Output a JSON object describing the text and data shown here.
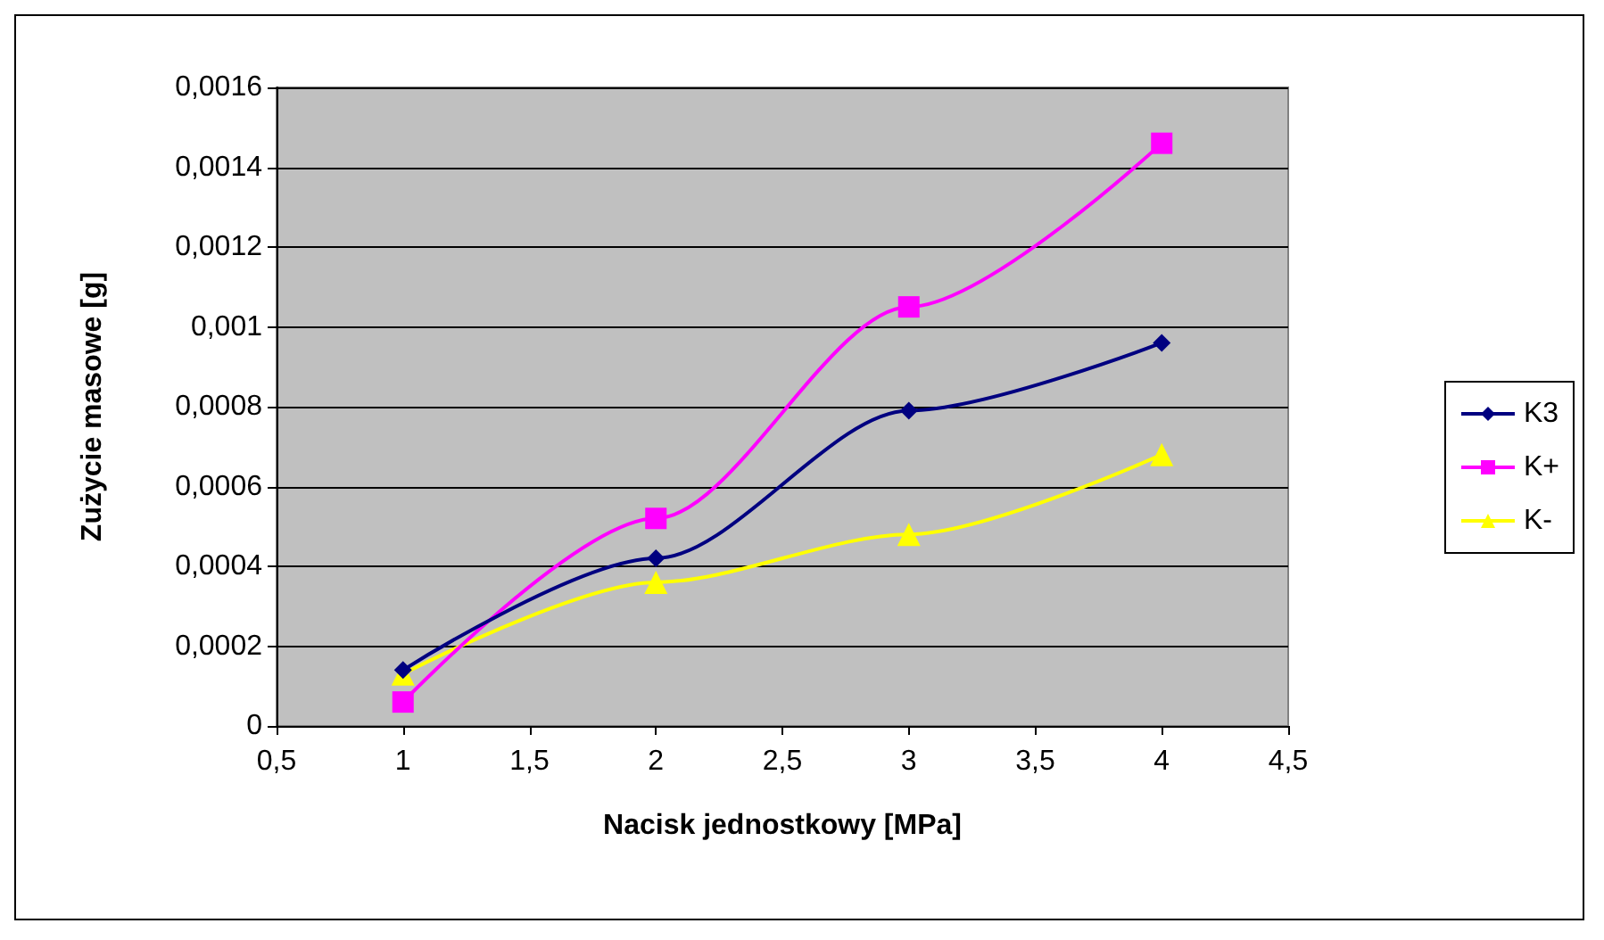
{
  "chart_data": {
    "type": "line",
    "xlabel": "Nacisk jednostkowy [MPa]",
    "ylabel": "Zużycie masowe [g]",
    "x": [
      1,
      2,
      3,
      4
    ],
    "series": [
      {
        "name": "K3",
        "color": "#000080",
        "marker": "diamond",
        "values": [
          0.00014,
          0.00042,
          0.00079,
          0.00096
        ]
      },
      {
        "name": "K+",
        "color": "#ff00ff",
        "marker": "square",
        "values": [
          6e-05,
          0.00052,
          0.00105,
          0.00146
        ]
      },
      {
        "name": "K-",
        "color": "#ffff00",
        "marker": "triangle",
        "values": [
          0.00013,
          0.00036,
          0.00048,
          0.00068
        ]
      }
    ],
    "xlim": [
      0.5,
      4.5
    ],
    "xticks": [
      {
        "value": 0.5,
        "label": "0,5"
      },
      1,
      {
        "value": 1.5,
        "label": "1,5"
      },
      2,
      {
        "value": 2.5,
        "label": "2,5"
      },
      3,
      {
        "value": 3.5,
        "label": "3,5"
      },
      4,
      {
        "value": 4.5,
        "label": "4,5"
      }
    ],
    "ylim": [
      0,
      0.0016
    ],
    "yticks": [
      0,
      {
        "value": 0.0002,
        "label": "0,0002"
      },
      {
        "value": 0.0004,
        "label": "0,0004"
      },
      {
        "value": 0.0006,
        "label": "0,0006"
      },
      {
        "value": 0.0008,
        "label": "0,0008"
      },
      {
        "value": 0.001,
        "label": "0,001"
      },
      {
        "value": 0.0012,
        "label": "0,0012"
      },
      {
        "value": 0.0014,
        "label": "0,0014"
      },
      {
        "value": 0.0016,
        "label": "0,0016"
      }
    ],
    "grid": "y",
    "legend": "right",
    "line_style": "solid"
  }
}
